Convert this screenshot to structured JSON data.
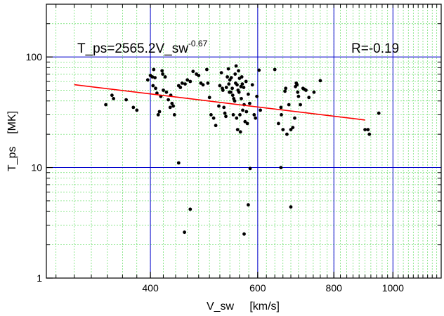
{
  "chart_data": {
    "type": "scatter",
    "xlabel": "V_sw     [km/s]",
    "ylabel": "T_ps    [MK]",
    "x_scale": "log",
    "y_scale": "log",
    "xlim": [
      270,
      1200
    ],
    "ylim": [
      1,
      300
    ],
    "x_ticks": [
      {
        "value": 400,
        "label": "400"
      },
      {
        "value": 600,
        "label": "600"
      },
      {
        "value": 800,
        "label": "800"
      },
      {
        "value": 1000,
        "label": "1000"
      }
    ],
    "y_ticks": [
      {
        "value": 1,
        "label": "1"
      },
      {
        "value": 10,
        "label": "10"
      },
      {
        "value": 100,
        "label": "100"
      }
    ],
    "fit_label": {
      "prefix": "T_ps=2565.2V_sw",
      "exponent": "-0.67"
    },
    "r_label": "R=-0.19",
    "fit": {
      "coefficient": 2565.2,
      "exponent": -0.67,
      "x_range": [
        300,
        900
      ]
    },
    "grid": {
      "major": true,
      "minor": true
    },
    "colors": {
      "points": "#000000",
      "fit": "#ff0000",
      "major_grid": "#0000cc",
      "minor_grid": "#66dd66",
      "axes": "#000000"
    },
    "points": [
      [
        338,
        37
      ],
      [
        346,
        45
      ],
      [
        348,
        42
      ],
      [
        365,
        41
      ],
      [
        375,
        35
      ],
      [
        380,
        33
      ],
      [
        396,
        62
      ],
      [
        400,
        68
      ],
      [
        403,
        66
      ],
      [
        404,
        55
      ],
      [
        405,
        77
      ],
      [
        407,
        65
      ],
      [
        408,
        52
      ],
      [
        410,
        47
      ],
      [
        412,
        30
      ],
      [
        414,
        32
      ],
      [
        416,
        44
      ],
      [
        418,
        75
      ],
      [
        419,
        70
      ],
      [
        420,
        50
      ],
      [
        423,
        66
      ],
      [
        425,
        48
      ],
      [
        428,
        41
      ],
      [
        431,
        35
      ],
      [
        432,
        45
      ],
      [
        434,
        38
      ],
      [
        436,
        36
      ],
      [
        438,
        30
      ],
      [
        445,
        55
      ],
      [
        448,
        53
      ],
      [
        451,
        58
      ],
      [
        456,
        57
      ],
      [
        460,
        62
      ],
      [
        465,
        60
      ],
      [
        470,
        74
      ],
      [
        476,
        70
      ],
      [
        480,
        68
      ],
      [
        484,
        58
      ],
      [
        488,
        56
      ],
      [
        495,
        77
      ],
      [
        497,
        58
      ],
      [
        500,
        43
      ],
      [
        503,
        30
      ],
      [
        508,
        28
      ],
      [
        512,
        24
      ],
      [
        518,
        36
      ],
      [
        520,
        55
      ],
      [
        523,
        72
      ],
      [
        525,
        52
      ],
      [
        526,
        50
      ],
      [
        528,
        35
      ],
      [
        530,
        31
      ],
      [
        532,
        29
      ],
      [
        533,
        53
      ],
      [
        535,
        66
      ],
      [
        537,
        78
      ],
      [
        538,
        57
      ],
      [
        539,
        48
      ],
      [
        540,
        62
      ],
      [
        542,
        48
      ],
      [
        543,
        65
      ],
      [
        545,
        52
      ],
      [
        546,
        45
      ],
      [
        547,
        30
      ],
      [
        548,
        42
      ],
      [
        550,
        40
      ],
      [
        551,
        70
      ],
      [
        552,
        58
      ],
      [
        553,
        83
      ],
      [
        554,
        28
      ],
      [
        555,
        56
      ],
      [
        556,
        22
      ],
      [
        557,
        50
      ],
      [
        558,
        75
      ],
      [
        559,
        48
      ],
      [
        560,
        64
      ],
      [
        561,
        30
      ],
      [
        562,
        21
      ],
      [
        563,
        54
      ],
      [
        564,
        42
      ],
      [
        565,
        66
      ],
      [
        566,
        57
      ],
      [
        567,
        33
      ],
      [
        569,
        53
      ],
      [
        570,
        37
      ],
      [
        572,
        26
      ],
      [
        574,
        60
      ],
      [
        575,
        32
      ],
      [
        577,
        25
      ],
      [
        579,
        46
      ],
      [
        582,
        38
      ],
      [
        588,
        56
      ],
      [
        592,
        30
      ],
      [
        595,
        28
      ],
      [
        598,
        44
      ],
      [
        603,
        76
      ],
      [
        606,
        33
      ],
      [
        640,
        77
      ],
      [
        649,
        25
      ],
      [
        655,
        35
      ],
      [
        656,
        30
      ],
      [
        660,
        22
      ],
      [
        665,
        49
      ],
      [
        667,
        52
      ],
      [
        670,
        20
      ],
      [
        675,
        37
      ],
      [
        680,
        22
      ],
      [
        685,
        23
      ],
      [
        690,
        28
      ],
      [
        692,
        54
      ],
      [
        694,
        58
      ],
      [
        696,
        56
      ],
      [
        698,
        48
      ],
      [
        700,
        44
      ],
      [
        705,
        37
      ],
      [
        712,
        52
      ],
      [
        716,
        51
      ],
      [
        720,
        50
      ],
      [
        728,
        43
      ],
      [
        742,
        48
      ],
      [
        760,
        61
      ],
      [
        445,
        11
      ],
      [
        455,
        2.6
      ],
      [
        465,
        4.2
      ],
      [
        570,
        2.5
      ],
      [
        579,
        4.6
      ],
      [
        583,
        9.8
      ],
      [
        655,
        10
      ],
      [
        680,
        4.4
      ],
      [
        900,
        22
      ],
      [
        910,
        22
      ],
      [
        915,
        20
      ],
      [
        948,
        31
      ]
    ]
  }
}
